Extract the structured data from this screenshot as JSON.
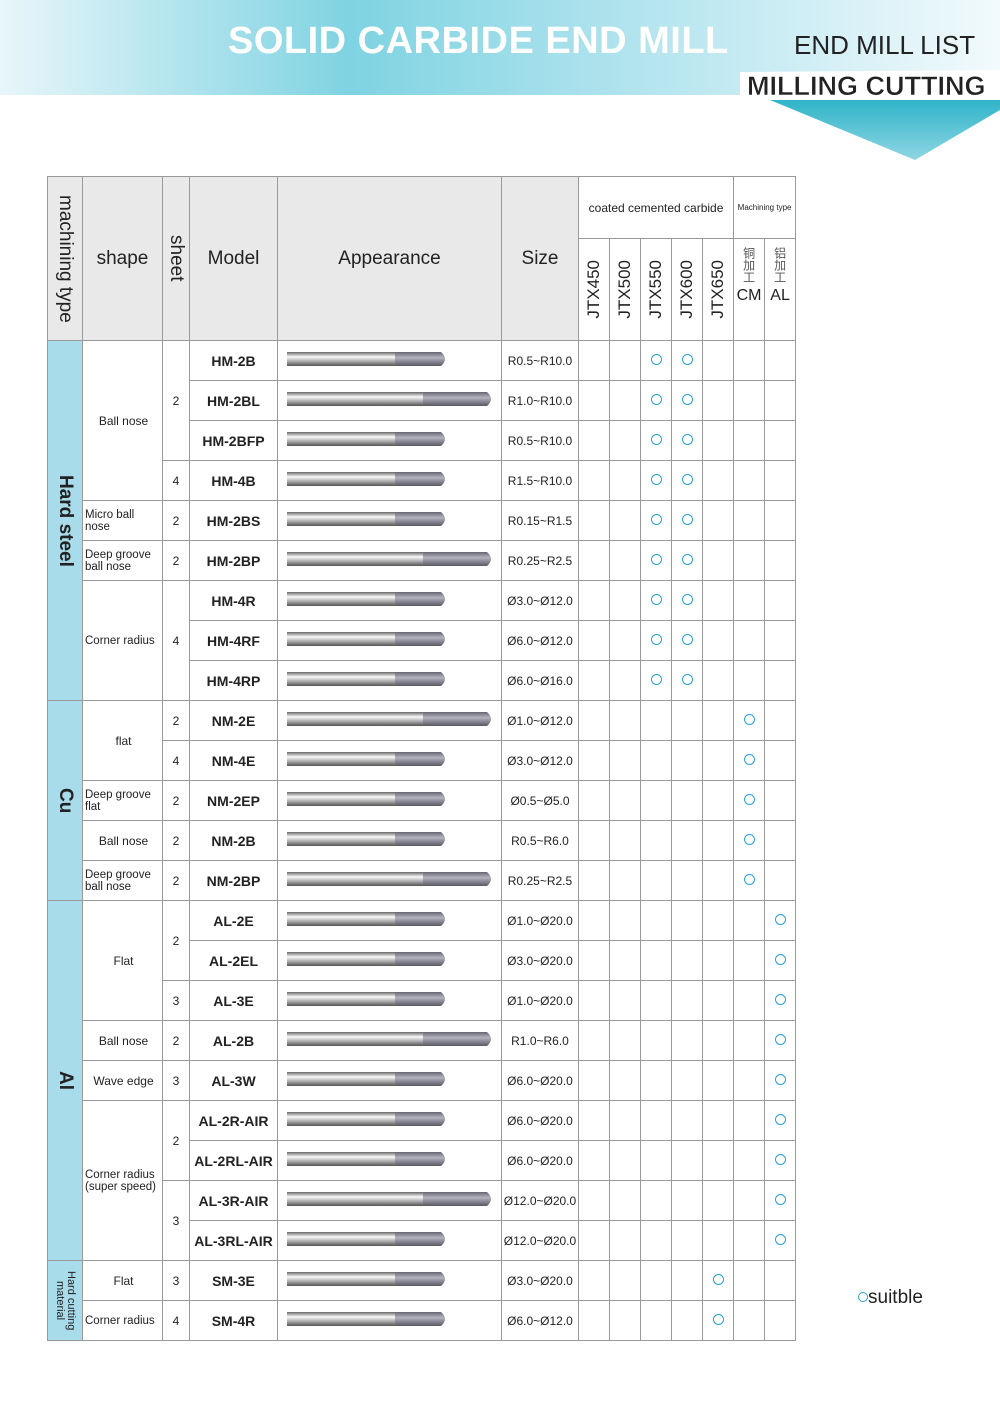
{
  "header": {
    "title": "SOLID CARBIDE END MILL",
    "subtitle": "END MILL LIST",
    "tag": "MILLING CUTTING"
  },
  "table": {
    "columns": {
      "machining_type": "machining type",
      "shape": "shape",
      "sheet": "sheet",
      "model": "Model",
      "appearance": "Appearance",
      "size": "Size",
      "coated": "coated cemented carbide",
      "machining": "Machining type",
      "grades": [
        "JTX450",
        "JTX500",
        "JTX550",
        "JTX600",
        "JTX650"
      ],
      "types": [
        {
          "cn": "铜加工",
          "code": "CM"
        },
        {
          "cn": "铝加工",
          "code": "AL"
        }
      ]
    },
    "groups": [
      {
        "name": "Hard steel",
        "shapes": [
          {
            "name": "Ball nose",
            "sheets": [
              {
                "sheet": 2,
                "items": [
                  {
                    "model": "HM-2B",
                    "size": "R0.5~R10.0",
                    "marks": [
                      false,
                      false,
                      true,
                      true,
                      false,
                      false,
                      false
                    ]
                  },
                  {
                    "model": "HM-2BL",
                    "size": "R1.0~R10.0",
                    "marks": [
                      false,
                      false,
                      true,
                      true,
                      false,
                      false,
                      false
                    ]
                  },
                  {
                    "model": "HM-2BFP",
                    "size": "R0.5~R10.0",
                    "marks": [
                      false,
                      false,
                      true,
                      true,
                      false,
                      false,
                      false
                    ]
                  }
                ]
              },
              {
                "sheet": 4,
                "items": [
                  {
                    "model": "HM-4B",
                    "size": "R1.5~R10.0",
                    "marks": [
                      false,
                      false,
                      true,
                      true,
                      false,
                      false,
                      false
                    ]
                  }
                ]
              }
            ]
          },
          {
            "name": "Micro ball nose",
            "sheets": [
              {
                "sheet": 2,
                "items": [
                  {
                    "model": "HM-2BS",
                    "size": "R0.15~R1.5",
                    "marks": [
                      false,
                      false,
                      true,
                      true,
                      false,
                      false,
                      false
                    ]
                  }
                ]
              }
            ]
          },
          {
            "name": "Deep groove ball nose",
            "sheets": [
              {
                "sheet": 2,
                "items": [
                  {
                    "model": "HM-2BP",
                    "size": "R0.25~R2.5",
                    "marks": [
                      false,
                      false,
                      true,
                      true,
                      false,
                      false,
                      false
                    ]
                  }
                ]
              }
            ]
          },
          {
            "name": "Corner radius",
            "sheets": [
              {
                "sheet": 4,
                "items": [
                  {
                    "model": "HM-4R",
                    "size": "Ø3.0~Ø12.0",
                    "marks": [
                      false,
                      false,
                      true,
                      true,
                      false,
                      false,
                      false
                    ]
                  },
                  {
                    "model": "HM-4RF",
                    "size": "Ø6.0~Ø12.0",
                    "marks": [
                      false,
                      false,
                      true,
                      true,
                      false,
                      false,
                      false
                    ]
                  },
                  {
                    "model": "HM-4RP",
                    "size": "Ø6.0~Ø16.0",
                    "marks": [
                      false,
                      false,
                      true,
                      true,
                      false,
                      false,
                      false
                    ]
                  }
                ]
              }
            ]
          }
        ]
      },
      {
        "name": "Cu",
        "shapes": [
          {
            "name": "flat",
            "sheets": [
              {
                "sheet": 2,
                "items": [
                  {
                    "model": "NM-2E",
                    "size": "Ø1.0~Ø12.0",
                    "marks": [
                      false,
                      false,
                      false,
                      false,
                      false,
                      true,
                      false
                    ]
                  }
                ]
              },
              {
                "sheet": 4,
                "items": [
                  {
                    "model": "NM-4E",
                    "size": "Ø3.0~Ø12.0",
                    "marks": [
                      false,
                      false,
                      false,
                      false,
                      false,
                      true,
                      false
                    ]
                  }
                ]
              }
            ]
          },
          {
            "name": "Deep groove flat",
            "sheets": [
              {
                "sheet": 2,
                "items": [
                  {
                    "model": "NM-2EP",
                    "size": "Ø0.5~Ø5.0",
                    "marks": [
                      false,
                      false,
                      false,
                      false,
                      false,
                      true,
                      false
                    ]
                  }
                ]
              }
            ]
          },
          {
            "name": "Ball nose",
            "sheets": [
              {
                "sheet": 2,
                "items": [
                  {
                    "model": "NM-2B",
                    "size": "R0.5~R6.0",
                    "marks": [
                      false,
                      false,
                      false,
                      false,
                      false,
                      true,
                      false
                    ]
                  }
                ]
              }
            ]
          },
          {
            "name": "Deep groove ball nose",
            "sheets": [
              {
                "sheet": 2,
                "items": [
                  {
                    "model": "NM-2BP",
                    "size": "R0.25~R2.5",
                    "marks": [
                      false,
                      false,
                      false,
                      false,
                      false,
                      true,
                      false
                    ]
                  }
                ]
              }
            ]
          }
        ]
      },
      {
        "name": "Al",
        "shapes": [
          {
            "name": "Flat",
            "sheets": [
              {
                "sheet": 2,
                "items": [
                  {
                    "model": "AL-2E",
                    "size": "Ø1.0~Ø20.0",
                    "marks": [
                      false,
                      false,
                      false,
                      false,
                      false,
                      false,
                      true
                    ]
                  },
                  {
                    "model": "AL-2EL",
                    "size": "Ø3.0~Ø20.0",
                    "marks": [
                      false,
                      false,
                      false,
                      false,
                      false,
                      false,
                      true
                    ]
                  }
                ]
              },
              {
                "sheet": 3,
                "items": [
                  {
                    "model": "AL-3E",
                    "size": "Ø1.0~Ø20.0",
                    "marks": [
                      false,
                      false,
                      false,
                      false,
                      false,
                      false,
                      true
                    ]
                  }
                ]
              }
            ]
          },
          {
            "name": "Ball nose",
            "sheets": [
              {
                "sheet": 2,
                "items": [
                  {
                    "model": "AL-2B",
                    "size": "R1.0~R6.0",
                    "marks": [
                      false,
                      false,
                      false,
                      false,
                      false,
                      false,
                      true
                    ]
                  }
                ]
              }
            ]
          },
          {
            "name": "Wave edge",
            "sheets": [
              {
                "sheet": 3,
                "items": [
                  {
                    "model": "AL-3W",
                    "size": "Ø6.0~Ø20.0",
                    "marks": [
                      false,
                      false,
                      false,
                      false,
                      false,
                      false,
                      true
                    ]
                  }
                ]
              }
            ]
          },
          {
            "name": "Corner radius (super speed)",
            "sheets": [
              {
                "sheet": 2,
                "items": [
                  {
                    "model": "AL-2R-AIR",
                    "size": "Ø6.0~Ø20.0",
                    "marks": [
                      false,
                      false,
                      false,
                      false,
                      false,
                      false,
                      true
                    ]
                  },
                  {
                    "model": "AL-2RL-AIR",
                    "size": "Ø6.0~Ø20.0",
                    "marks": [
                      false,
                      false,
                      false,
                      false,
                      false,
                      false,
                      true
                    ]
                  }
                ]
              },
              {
                "sheet": 3,
                "items": [
                  {
                    "model": "AL-3R-AIR",
                    "size": "Ø12.0~Ø20.0",
                    "marks": [
                      false,
                      false,
                      false,
                      false,
                      false,
                      false,
                      true
                    ]
                  },
                  {
                    "model": "AL-3RL-AIR",
                    "size": "Ø12.0~Ø20.0",
                    "marks": [
                      false,
                      false,
                      false,
                      false,
                      false,
                      false,
                      true
                    ]
                  }
                ]
              }
            ]
          }
        ]
      },
      {
        "name": "Hard cutting material",
        "shapes": [
          {
            "name": "Flat",
            "sheets": [
              {
                "sheet": 3,
                "items": [
                  {
                    "model": "SM-3E",
                    "size": "Ø3.0~Ø20.0",
                    "marks": [
                      false,
                      false,
                      false,
                      false,
                      true,
                      false,
                      false
                    ]
                  }
                ]
              }
            ]
          },
          {
            "name": "Corner radius",
            "sheets": [
              {
                "sheet": 4,
                "items": [
                  {
                    "model": "SM-4R",
                    "size": "Ø6.0~Ø12.0",
                    "marks": [
                      false,
                      false,
                      false,
                      false,
                      true,
                      false,
                      false
                    ]
                  }
                ]
              }
            ]
          }
        ]
      }
    ]
  },
  "legend": {
    "label": "suitble"
  }
}
